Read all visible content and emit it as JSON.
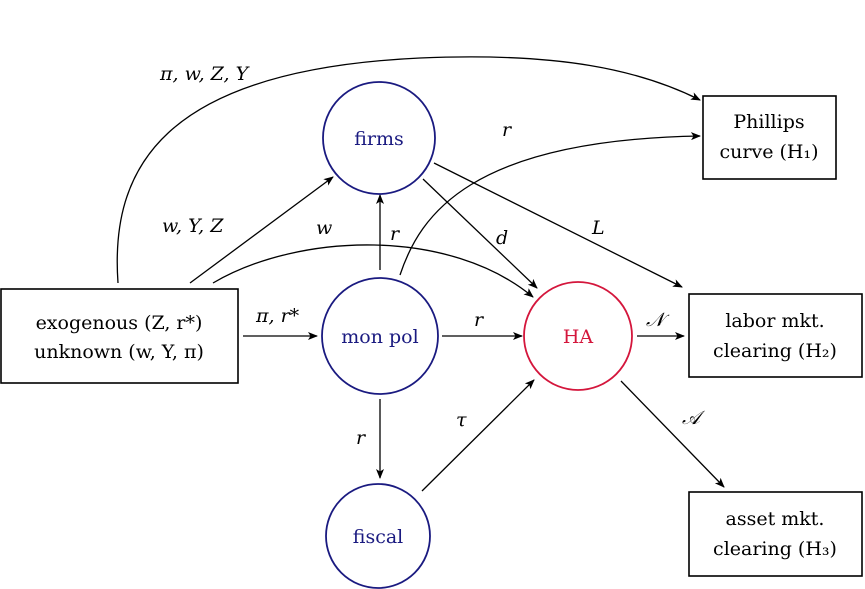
{
  "nodes": {
    "exogenous": {
      "line1": "exogenous (Z, r*)",
      "line2": "unknown (w, Y, π)"
    },
    "firms": {
      "label": "firms"
    },
    "mon_pol": {
      "label": "mon pol"
    },
    "fiscal": {
      "label": "fiscal"
    },
    "ha": {
      "label": "HA"
    },
    "phillips": {
      "line1": "Phillips",
      "line2": "curve (H₁)"
    },
    "labor": {
      "line1": "labor mkt.",
      "line2": "clearing (H₂)"
    },
    "asset": {
      "line1": "asset mkt.",
      "line2": "clearing (H₃)"
    }
  },
  "edges": {
    "exo_to_phillips": "π, w, Z, Y",
    "exo_to_firms": "w, Y, Z",
    "exo_to_ha": "w",
    "exo_to_monpol": "π, r*",
    "monpol_to_firms": "r",
    "monpol_to_phillips": "r",
    "monpol_to_ha": "r",
    "monpol_to_fiscal": "r",
    "firms_to_ha": "d",
    "firms_to_labor": "L",
    "fiscal_to_ha": "τ",
    "ha_to_labor": "𝒩",
    "ha_to_asset": "𝒜"
  },
  "colors": {
    "circle_blue": "#1a1a80",
    "ha_red": "#d4163c"
  }
}
